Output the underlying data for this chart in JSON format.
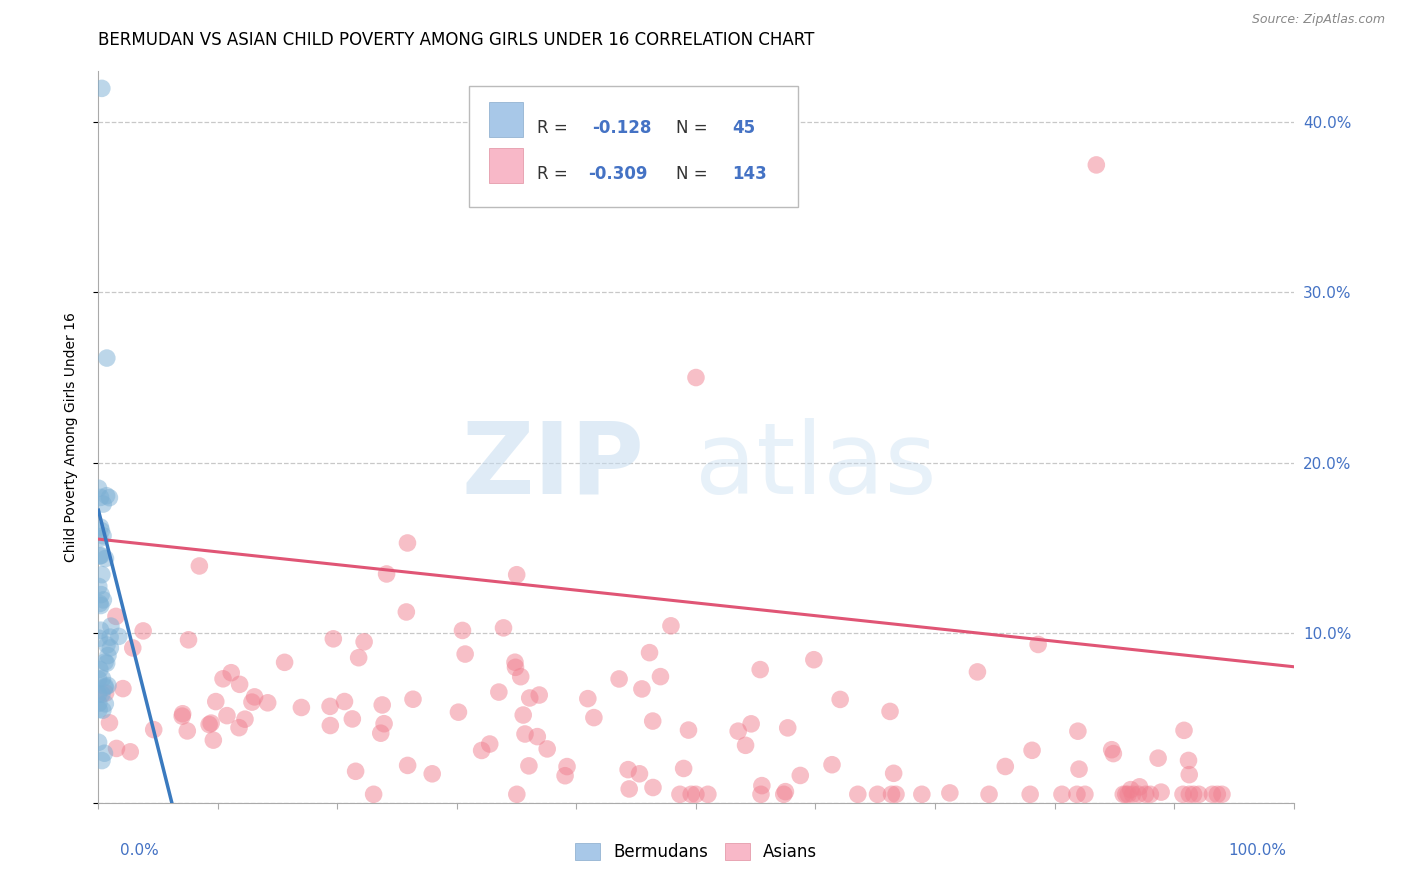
{
  "title": "BERMUDAN VS ASIAN CHILD POVERTY AMONG GIRLS UNDER 16 CORRELATION CHART",
  "source": "Source: ZipAtlas.com",
  "ylabel": "Child Poverty Among Girls Under 16",
  "xlim": [
    0.0,
    1.0
  ],
  "ylim": [
    0.0,
    0.43
  ],
  "yticks": [
    0.0,
    0.1,
    0.2,
    0.3,
    0.4
  ],
  "bermudan_R": -0.128,
  "bermudan_N": 45,
  "asian_R": -0.309,
  "asian_N": 143,
  "bermudan_scatter_color": "#7bafd4",
  "asian_scatter_color": "#f08090",
  "trend_bermudan_color": "#3a7abf",
  "trend_asian_color": "#e05575",
  "grid_color": "#c8c8c8",
  "background_color": "#ffffff",
  "title_fontsize": 12,
  "axis_label_fontsize": 10,
  "tick_fontsize": 11,
  "legend_fontsize": 12,
  "source_fontsize": 9
}
